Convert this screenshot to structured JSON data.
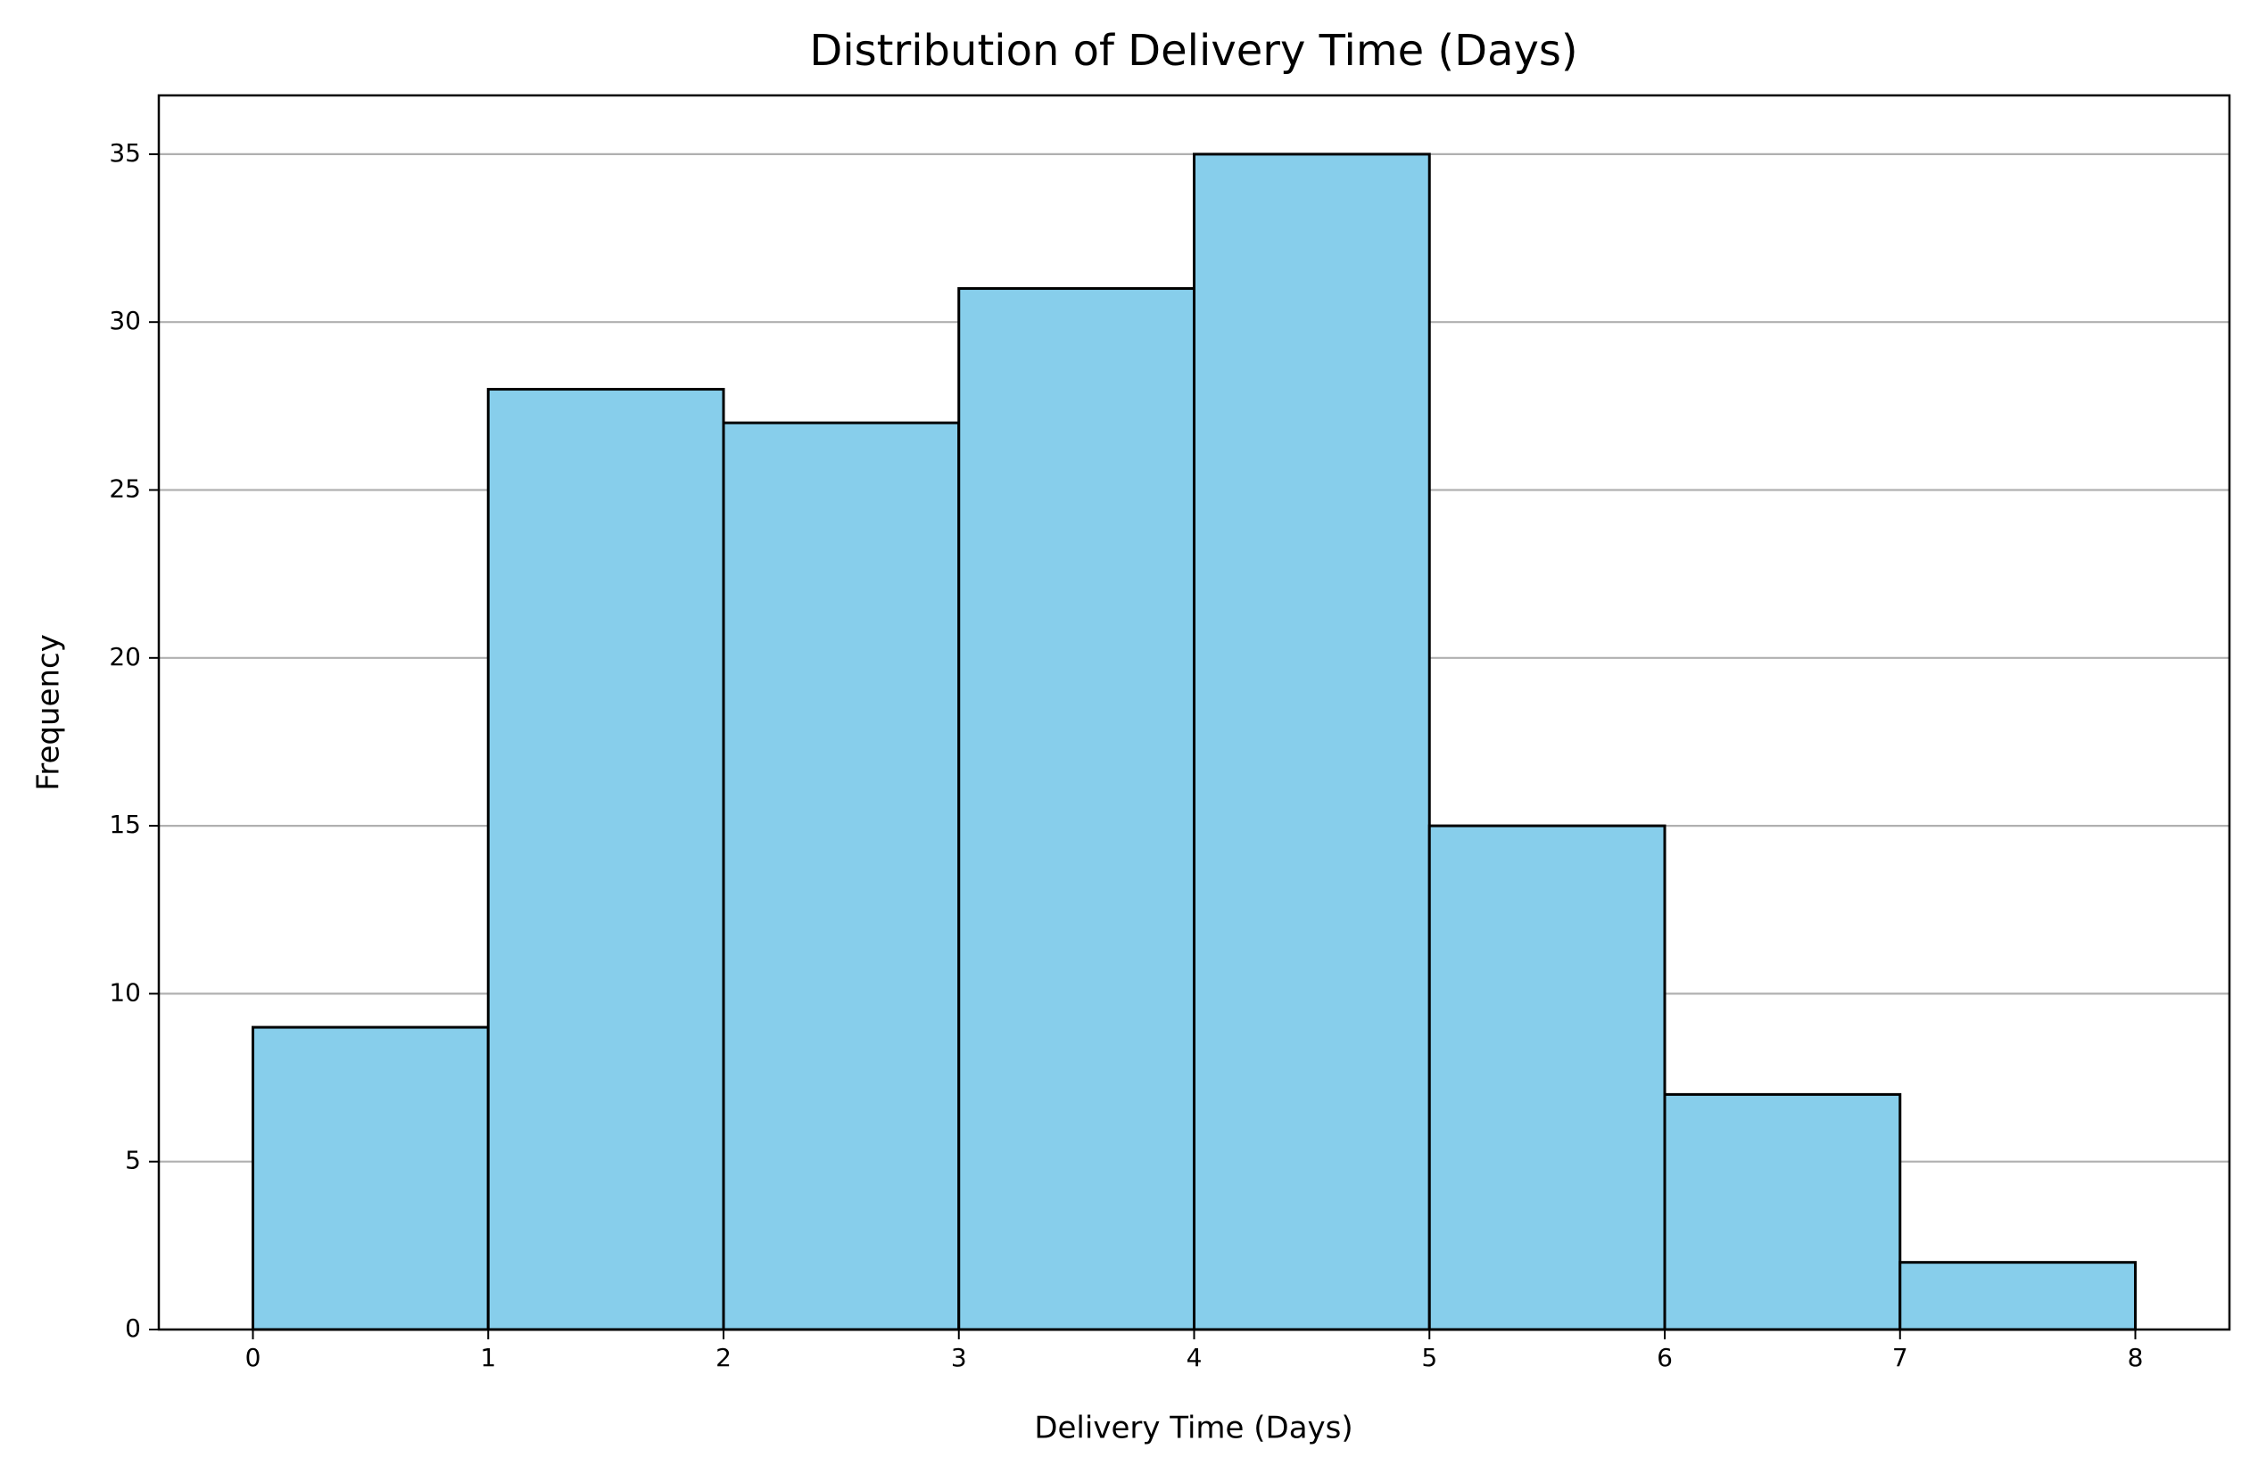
{
  "chart_data": {
    "type": "histogram",
    "title": "Distribution of Delivery Time (Days)",
    "x_label": "Delivery Time (Days)",
    "y_label": "Frequency",
    "bins": [
      0,
      1,
      2,
      3,
      4,
      5,
      6,
      7,
      8
    ],
    "values": [
      9,
      28,
      27,
      31,
      35,
      15,
      7,
      2
    ],
    "color": "#87ceeb",
    "edgecolor": "#000000",
    "xlim": [
      -0.4,
      8.4
    ],
    "xticks": [
      0,
      1,
      2,
      3,
      4,
      5,
      6,
      7,
      8
    ],
    "ylim": [
      0,
      36.75
    ],
    "yticks": [
      0,
      5,
      10,
      15,
      20,
      25,
      30,
      35
    ],
    "grid": "y"
  }
}
